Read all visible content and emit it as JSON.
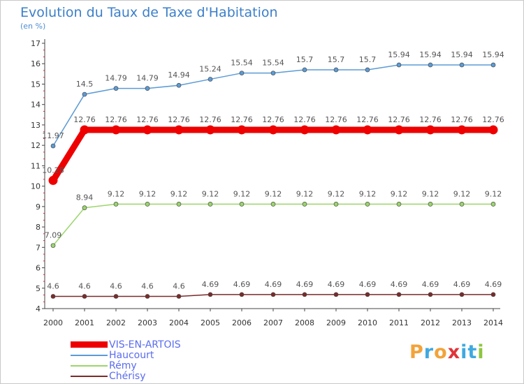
{
  "header": {
    "title": "Evolution du Taux de Taxe d'Habitation",
    "subtitle": "(en %)"
  },
  "logo": {
    "letters": [
      "P",
      "r",
      "o",
      "x",
      "i",
      "t",
      "i"
    ],
    "colors": [
      "#f2a33a",
      "#3fa9e0",
      "#f2a33a",
      "#e0343a",
      "#3fa9e0",
      "#3fa9e0",
      "#8ec63f"
    ]
  },
  "chart_data": {
    "type": "line",
    "x": [
      "2000",
      "2001",
      "2002",
      "2003",
      "2004",
      "2005",
      "2006",
      "2007",
      "2008",
      "2009",
      "2010",
      "2011",
      "2012",
      "2013",
      "2014"
    ],
    "ylim": [
      4,
      17
    ],
    "yticks": [
      "4",
      "5",
      "6",
      "7",
      "8",
      "9",
      "10",
      "11",
      "12",
      "13",
      "14",
      "15",
      "16",
      "17"
    ],
    "grid": false,
    "legend_position": "bottom-left",
    "series": [
      {
        "name": "VIS-EN-ARTOIS",
        "color": "#ee0000",
        "emphasis": true,
        "values": [
          10.28,
          12.76,
          12.76,
          12.76,
          12.76,
          12.76,
          12.76,
          12.76,
          12.76,
          12.76,
          12.76,
          12.76,
          12.76,
          12.76,
          12.76
        ],
        "labels": [
          "10.28",
          "12.76",
          "12.76",
          "12.76",
          "12.76",
          "12.76",
          "12.76",
          "12.76",
          "12.76",
          "12.76",
          "12.76",
          "12.76",
          "12.76",
          "12.76",
          "12.76"
        ]
      },
      {
        "name": "Haucourt",
        "color": "#5b9bd5",
        "values": [
          11.97,
          14.5,
          14.79,
          14.79,
          14.94,
          15.24,
          15.54,
          15.54,
          15.7,
          15.7,
          15.7,
          15.94,
          15.94,
          15.94,
          15.94
        ],
        "labels": [
          "11.97",
          "14.5",
          "14.79",
          "14.79",
          "14.94",
          "15.24",
          "15.54",
          "15.54",
          "15.7",
          "15.7",
          "15.7",
          "15.94",
          "15.94",
          "15.94",
          "15.94"
        ]
      },
      {
        "name": "Rémy",
        "color": "#9bd56a",
        "values": [
          7.09,
          8.94,
          9.12,
          9.12,
          9.12,
          9.12,
          9.12,
          9.12,
          9.12,
          9.12,
          9.12,
          9.12,
          9.12,
          9.12,
          9.12
        ],
        "labels": [
          "7.09",
          "8.94",
          "9.12",
          "9.12",
          "9.12",
          "9.12",
          "9.12",
          "9.12",
          "9.12",
          "9.12",
          "9.12",
          "9.12",
          "9.12",
          "9.12",
          "9.12"
        ]
      },
      {
        "name": "Chérisy",
        "color": "#7a2a2a",
        "values": [
          4.6,
          4.6,
          4.6,
          4.6,
          4.6,
          4.69,
          4.69,
          4.69,
          4.69,
          4.69,
          4.69,
          4.69,
          4.69,
          4.69,
          4.69
        ],
        "labels": [
          "4.6",
          "4.6",
          "4.6",
          "4.6",
          "4.6",
          "4.69",
          "4.69",
          "4.69",
          "4.69",
          "4.69",
          "4.69",
          "4.69",
          "4.69",
          "4.69",
          "4.69"
        ]
      }
    ]
  }
}
